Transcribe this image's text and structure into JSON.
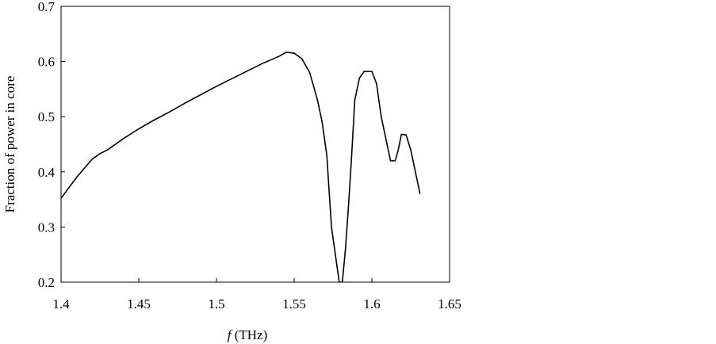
{
  "chart_data": {
    "type": "line",
    "xlabel_symbol": "f",
    "xlabel_unit": "(THz)",
    "ylabel": "Fraction of power in core",
    "x": [
      1.4,
      1.41,
      1.42,
      1.425,
      1.43,
      1.44,
      1.45,
      1.46,
      1.47,
      1.48,
      1.49,
      1.5,
      1.51,
      1.52,
      1.53,
      1.54,
      1.545,
      1.55,
      1.555,
      1.56,
      1.565,
      1.568,
      1.571,
      1.574,
      1.577,
      1.579,
      1.581,
      1.583,
      1.585,
      1.587,
      1.589,
      1.592,
      1.595,
      1.6,
      1.603,
      1.606,
      1.609,
      1.612,
      1.615,
      1.617,
      1.619,
      1.622,
      1.625,
      1.628,
      1.631
    ],
    "series": [
      {
        "color": "#000000",
        "values": [
          0.352,
          0.39,
          0.423,
          0.433,
          0.44,
          0.46,
          0.478,
          0.494,
          0.509,
          0.525,
          0.54,
          0.555,
          0.569,
          0.583,
          0.597,
          0.609,
          0.617,
          0.615,
          0.605,
          0.58,
          0.53,
          0.49,
          0.43,
          0.3,
          0.24,
          0.2,
          0.2,
          0.26,
          0.34,
          0.43,
          0.53,
          0.57,
          0.582,
          0.582,
          0.56,
          0.5,
          0.46,
          0.42,
          0.42,
          0.44,
          0.468,
          0.467,
          0.44,
          0.4,
          0.36
        ]
      }
    ],
    "xlim": [
      1.4,
      1.65
    ],
    "xticks": [
      1.4,
      1.45,
      1.5,
      1.55,
      1.6,
      1.65
    ],
    "ylim": [
      0.2,
      0.7
    ],
    "yticks": [
      0.2,
      0.3,
      0.4,
      0.5,
      0.6,
      0.7
    ],
    "grid": false
  }
}
